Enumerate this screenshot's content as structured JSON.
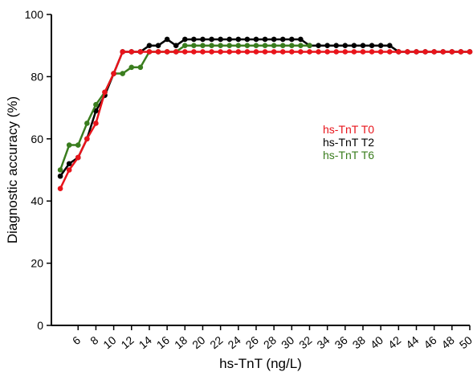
{
  "chart_data": {
    "type": "line",
    "xlabel": "hs-TnT (ng/L)",
    "ylabel": "Diagnostic accuracy (%)",
    "xlim": [
      3,
      50
    ],
    "ylim": [
      0,
      100
    ],
    "x_ticks": [
      6,
      8,
      10,
      12,
      14,
      16,
      18,
      20,
      22,
      24,
      26,
      28,
      30,
      32,
      34,
      36,
      38,
      40,
      42,
      44,
      46,
      48,
      50
    ],
    "y_ticks": [
      0,
      20,
      40,
      60,
      80,
      100
    ],
    "grid": false,
    "legend_position": "right-center",
    "series": [
      {
        "name": "hs-TnT T2",
        "color": "#000000",
        "x": [
          4,
          5,
          6,
          7,
          8,
          9,
          10,
          11,
          12,
          13,
          14,
          15,
          16,
          17,
          18,
          19,
          20,
          21,
          22,
          23,
          24,
          25,
          26,
          27,
          28,
          29,
          30,
          31,
          32,
          33,
          34,
          35,
          36,
          37,
          38,
          39,
          40,
          41,
          42,
          43,
          44,
          45,
          46,
          47,
          48,
          49,
          50
        ],
        "y": [
          48,
          52,
          54,
          60,
          69,
          74,
          81,
          88,
          88,
          88,
          90,
          90,
          92,
          90,
          92,
          92,
          92,
          92,
          92,
          92,
          92,
          92,
          92,
          92,
          92,
          92,
          92,
          92,
          90,
          90,
          90,
          90,
          90,
          90,
          90,
          90,
          90,
          90,
          88,
          88,
          88,
          88,
          88,
          88,
          88,
          88,
          88
        ]
      },
      {
        "name": "hs-TnT T6",
        "color": "#3a7d1e",
        "x": [
          4,
          5,
          6,
          7,
          8,
          9,
          10,
          11,
          12,
          13,
          14,
          15,
          16,
          17,
          18,
          19,
          20,
          21,
          22,
          23,
          24,
          25,
          26,
          27,
          28,
          29,
          30,
          31,
          32
        ],
        "y": [
          50,
          58,
          58,
          65,
          71,
          75,
          81,
          81,
          83,
          83,
          88,
          88,
          88,
          88,
          90,
          90,
          90,
          90,
          90,
          90,
          90,
          90,
          90,
          90,
          90,
          90,
          90,
          90,
          90
        ]
      },
      {
        "name": "hs-TnT T0",
        "color": "#e8141b",
        "x": [
          4,
          5,
          6,
          7,
          8,
          9,
          10,
          11,
          12,
          13,
          14,
          15,
          16,
          17,
          18,
          19,
          20,
          21,
          22,
          23,
          24,
          25,
          26,
          27,
          28,
          29,
          30,
          31,
          32,
          33,
          34,
          35,
          36,
          37,
          38,
          39,
          40,
          41,
          42,
          43,
          44,
          45,
          46,
          47,
          48,
          49,
          50
        ],
        "y": [
          44,
          50,
          54,
          60,
          65,
          75,
          81,
          88,
          88,
          88,
          88,
          88,
          88,
          88,
          88,
          88,
          88,
          88,
          88,
          88,
          88,
          88,
          88,
          88,
          88,
          88,
          88,
          88,
          88,
          88,
          88,
          88,
          88,
          88,
          88,
          88,
          88,
          88,
          88,
          88,
          88,
          88,
          88,
          88,
          88,
          88,
          88
        ]
      }
    ],
    "legend": [
      "hs-TnT T0",
      "hs-TnT T2",
      "hs-TnT T6"
    ]
  }
}
